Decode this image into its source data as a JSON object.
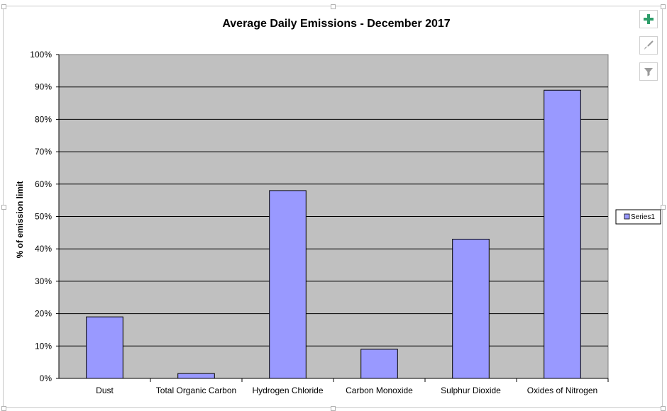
{
  "toolbar": {
    "add_elements_icon": "plus-icon",
    "styles_icon": "paintbrush-icon",
    "filters_icon": "funnel-icon",
    "accent": "#2e9e6a"
  },
  "chart_data": {
    "type": "bar",
    "title": "Average Daily Emissions - December 2017",
    "xlabel": "",
    "ylabel": "% of emission limit",
    "categories": [
      "Dust",
      "Total Organic Carbon",
      "Hydrogen Chloride",
      "Carbon Monoxide",
      "Sulphur Dioxide",
      "Oxides of Nitrogen"
    ],
    "series": [
      {
        "name": "Series1",
        "values": [
          19,
          1.5,
          58,
          9,
          43,
          89
        ],
        "color": "#9999ff"
      }
    ],
    "ylim": [
      0,
      100
    ],
    "yticks": [
      "0%",
      "10%",
      "20%",
      "30%",
      "40%",
      "50%",
      "60%",
      "70%",
      "80%",
      "90%",
      "100%"
    ],
    "grid": true,
    "plot_background": "#c0c0c0",
    "legend": "right"
  }
}
